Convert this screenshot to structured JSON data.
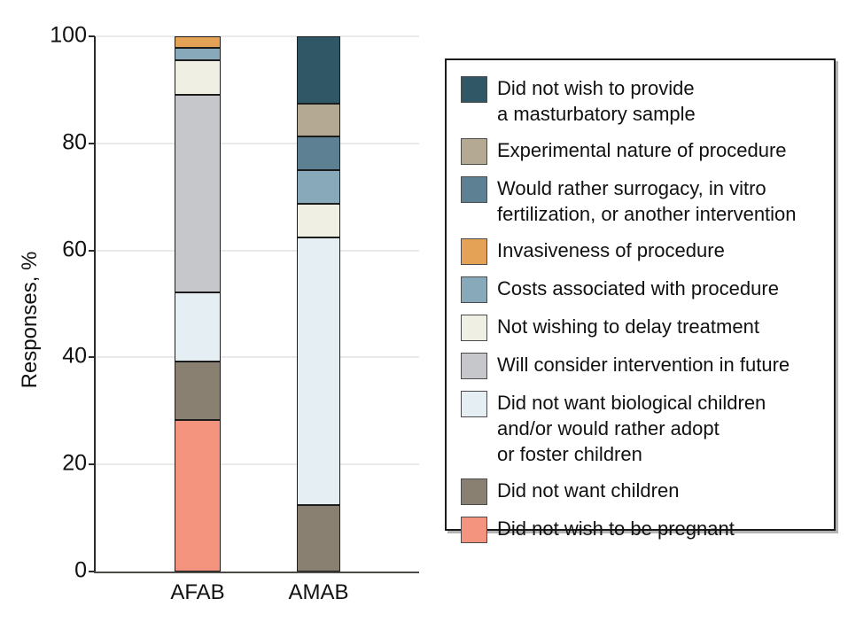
{
  "figure": {
    "background": "#ffffff",
    "y_axis_title": "Responses, %"
  },
  "chart_data": {
    "type": "bar",
    "stacked": true,
    "title": "",
    "xlabel": "",
    "ylabel": "Responses, %",
    "ylim": [
      0,
      100
    ],
    "yticks": [
      0,
      20,
      40,
      60,
      80,
      100
    ],
    "grid": true,
    "grid_color": "#eaeaea",
    "legend_position": "right",
    "categories": [
      "AFAB",
      "AMAB"
    ],
    "series": [
      {
        "name": "Did not wish to provide a masturbatory sample",
        "color": "#2F5765",
        "values": [
          0,
          12.5
        ]
      },
      {
        "name": "Experimental nature of procedure",
        "color": "#B4AA94",
        "values": [
          0,
          6.25
        ]
      },
      {
        "name": "Would rather surrogacy, in vitro fertilization, or another intervention",
        "color": "#5D8093",
        "values": [
          0,
          6.25
        ]
      },
      {
        "name": "Invasiveness of procedure",
        "color": "#E4A257",
        "values": [
          2.2,
          0
        ]
      },
      {
        "name": "Costs associated with procedure",
        "color": "#88A9BA",
        "values": [
          2.2,
          6.25
        ]
      },
      {
        "name": "Not wishing to delay treatment",
        "color": "#F0EFE3",
        "values": [
          6.5,
          6.25
        ]
      },
      {
        "name": "Will consider intervention in future",
        "color": "#C6C7CA",
        "values": [
          36.9,
          0
        ]
      },
      {
        "name": "Did not want biological children and/or would rather adopt or foster children",
        "color": "#E5EEF3",
        "values": [
          13.0,
          50
        ]
      },
      {
        "name": "Did not want children",
        "color": "#8A8071",
        "values": [
          10.9,
          12.5
        ]
      },
      {
        "name": "Did not wish to be pregnant",
        "color": "#F5947E",
        "values": [
          28.3,
          0
        ]
      }
    ]
  },
  "legend": {
    "items": [
      {
        "lines": [
          "Did not wish to provide",
          "a masturbatory sample"
        ]
      },
      {
        "lines": [
          "Experimental nature of procedure"
        ]
      },
      {
        "lines": [
          "Would rather surrogacy, in vitro",
          "fertilization, or another intervention"
        ]
      },
      {
        "lines": [
          "Invasiveness of procedure"
        ]
      },
      {
        "lines": [
          "Costs associated with procedure"
        ]
      },
      {
        "lines": [
          "Not wishing to delay treatment"
        ]
      },
      {
        "lines": [
          "Will consider intervention in future"
        ]
      },
      {
        "lines": [
          "Did not want biological children",
          "and/or would rather adopt",
          "or foster children"
        ]
      },
      {
        "lines": [
          "Did not want children"
        ]
      },
      {
        "lines": [
          "Did not wish to be pregnant"
        ]
      }
    ]
  }
}
